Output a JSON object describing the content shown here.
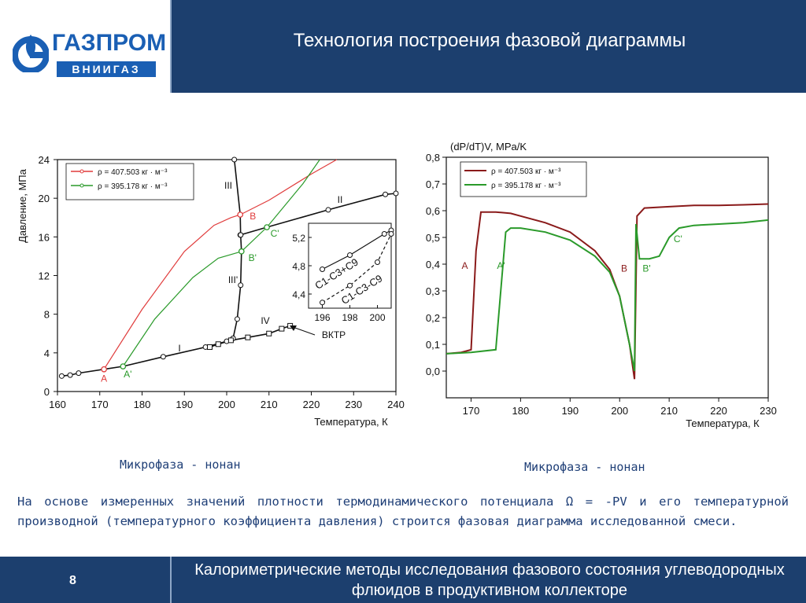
{
  "header": {
    "logo_word": "ГАЗПРОМ",
    "logo_sub": "ВНИИГАЗ",
    "title": "Технология построения фазовой диаграммы"
  },
  "captions": {
    "left": "Микрофаза - нонан",
    "right": "Микрофаза - нонан"
  },
  "description": "На основе измеренных значений плотности термодинамического потенциала Ω = -PV и его температурной производной (температурного коэффициента давления) строится фазовая диаграмма исследованной смеси.",
  "footer": {
    "page_number": "8",
    "text": "Калориметрические методы исследования фазового состояния углеводородных флюидов в продуктивном коллекторе"
  },
  "colors": {
    "header_bg": "#1c3f6e",
    "text_blue": "#1f3f77",
    "series_red": "#e03c3c",
    "series_green": "#2a9a2a",
    "series_darkred": "#8a1a1a",
    "series_black": "#111111"
  },
  "chart_data": [
    {
      "type": "line",
      "xlabel": "Температура, К",
      "ylabel": "Давление, МПа",
      "xlim": [
        160,
        240
      ],
      "ylim": [
        0,
        24
      ],
      "xticks": [
        "160",
        "170",
        "180",
        "190",
        "200",
        "210",
        "220",
        "230",
        "240"
      ],
      "yticks": [
        "0",
        "4",
        "8",
        "12",
        "16",
        "20",
        "24"
      ],
      "legend": [
        "ρ = 407.503 кг · м⁻³",
        "ρ = 395.178 кг · м⁻³"
      ],
      "legend_placement": "top-left",
      "series": [
        {
          "name": "ρ = 407.503 кг · м⁻³",
          "color": "#e03c3c",
          "x": [
            171,
            180,
            190,
            197,
            201,
            203.2,
            210,
            220,
            226
          ],
          "y": [
            2.3,
            8.5,
            14.5,
            17.2,
            18.0,
            18.3,
            19.8,
            22.5,
            24
          ]
        },
        {
          "name": "ρ = 395.178 кг · м⁻³",
          "color": "#2a9a2a",
          "x": [
            175.5,
            183,
            192,
            198,
            202,
            203.5,
            209.5,
            218,
            222
          ],
          "y": [
            2.6,
            7.5,
            11.8,
            13.8,
            14.3,
            14.5,
            17.0,
            21.5,
            24
          ]
        },
        {
          "name": "I",
          "color": "#111111",
          "x": [
            161,
            163,
            165,
            171,
            175.5,
            185,
            195,
            200,
            201.5
          ],
          "y": [
            1.6,
            1.7,
            1.9,
            2.3,
            2.6,
            3.6,
            4.6,
            5.2,
            5.5
          ]
        },
        {
          "name": "II",
          "color": "#111111",
          "x": [
            203.2,
            209.5,
            224,
            237.5,
            240
          ],
          "y": [
            16.2,
            17.0,
            18.8,
            20.4,
            20.5
          ]
        },
        {
          "name": "III",
          "color": "#111111",
          "x": [
            201.8,
            203.2,
            203.3
          ],
          "y": [
            24,
            18.3,
            16.2
          ]
        },
        {
          "name": "III'",
          "color": "#111111",
          "x": [
            203.3,
            203.5,
            203.3,
            202.5,
            201.5
          ],
          "y": [
            16.2,
            14.5,
            11.0,
            7.5,
            5.5
          ]
        },
        {
          "name": "IV",
          "color": "#111111",
          "x": [
            196,
            198,
            201,
            205,
            210,
            213,
            215
          ],
          "y": [
            4.6,
            4.9,
            5.3,
            5.6,
            6.0,
            6.5,
            6.8
          ]
        }
      ],
      "points": [
        {
          "label": "A",
          "x": 171,
          "y": 2.3,
          "color": "#e03c3c"
        },
        {
          "label": "A'",
          "x": 175.5,
          "y": 2.6,
          "color": "#2a9a2a"
        },
        {
          "label": "B",
          "x": 203.2,
          "y": 18.3,
          "color": "#e03c3c"
        },
        {
          "label": "B'",
          "x": 203.5,
          "y": 14.5,
          "color": "#2a9a2a"
        },
        {
          "label": "C'",
          "x": 209.5,
          "y": 17.0,
          "color": "#2a9a2a"
        }
      ],
      "annotations": [
        "I",
        "II",
        "III",
        "III'",
        "IV",
        "ВКТР"
      ],
      "inset": {
        "xticks": [
          "196",
          "198",
          "200"
        ],
        "yticks": [
          "4,4",
          "4,8",
          "5,2"
        ],
        "xlim": [
          195,
          201
        ],
        "ylim": [
          4.2,
          5.4
        ],
        "series": [
          {
            "name": "C1-C3+C9",
            "style": "solid",
            "x": [
              196,
              198,
              200.5,
              201
            ],
            "y": [
              4.75,
              4.95,
              5.25,
              5.3
            ]
          },
          {
            "name": "C1-C3-C9",
            "style": "dashed",
            "x": [
              196,
              198,
              200,
              201
            ],
            "y": [
              4.28,
              4.52,
              4.85,
              5.25
            ]
          }
        ],
        "labels": [
          "C1-C3+C9",
          "C1-C3-C9"
        ]
      }
    },
    {
      "type": "line",
      "xlabel": "Температура, К",
      "ylabel": "(dP/dT)V, MPa/K",
      "xlim": [
        165,
        230
      ],
      "ylim": [
        -0.1,
        0.8
      ],
      "xticks": [
        "170",
        "180",
        "190",
        "200",
        "210",
        "220",
        "230"
      ],
      "yticks": [
        "0,0",
        "0,1",
        "0,2",
        "0,3",
        "0,4",
        "0,5",
        "0,6",
        "0,7",
        "0,8"
      ],
      "legend": [
        "ρ = 407.503 кг · м⁻³",
        "ρ = 395.178 кг · м⁻³"
      ],
      "legend_placement": "top-left",
      "series": [
        {
          "name": "ρ = 407.503 кг · м⁻³",
          "color": "#8a1a1a",
          "x": [
            165,
            168,
            170,
            171,
            172,
            175,
            178,
            180,
            185,
            190,
            195,
            198,
            200,
            202,
            203,
            203.5,
            205,
            210,
            215,
            220,
            225,
            230
          ],
          "y": [
            0.065,
            0.07,
            0.08,
            0.45,
            0.595,
            0.595,
            0.59,
            0.58,
            0.555,
            0.52,
            0.45,
            0.38,
            0.28,
            0.1,
            -0.03,
            0.58,
            0.61,
            0.615,
            0.62,
            0.62,
            0.622,
            0.625
          ]
        },
        {
          "name": "ρ = 395.178 кг · м⁻³",
          "color": "#2a9a2a",
          "x": [
            165,
            170,
            175,
            176,
            177,
            178,
            180,
            185,
            190,
            195,
            198,
            200,
            202,
            203,
            203.3,
            204,
            206,
            208,
            210,
            212,
            215,
            220,
            225,
            230
          ],
          "y": [
            0.065,
            0.07,
            0.08,
            0.3,
            0.52,
            0.535,
            0.535,
            0.52,
            0.49,
            0.43,
            0.37,
            0.28,
            0.1,
            0.0,
            0.55,
            0.42,
            0.42,
            0.43,
            0.5,
            0.535,
            0.545,
            0.55,
            0.555,
            0.565
          ]
        }
      ],
      "points": [
        {
          "label": "A",
          "x": 170,
          "y": 0.4,
          "color": "#8a1a1a"
        },
        {
          "label": "A'",
          "x": 177,
          "y": 0.4,
          "color": "#2a9a2a"
        },
        {
          "label": "B",
          "x": 202.5,
          "y": 0.39,
          "color": "#8a1a1a"
        },
        {
          "label": "B'",
          "x": 204.5,
          "y": 0.39,
          "color": "#2a9a2a"
        },
        {
          "label": "C'",
          "x": 210.5,
          "y": 0.5,
          "color": "#2a9a2a"
        }
      ]
    }
  ]
}
